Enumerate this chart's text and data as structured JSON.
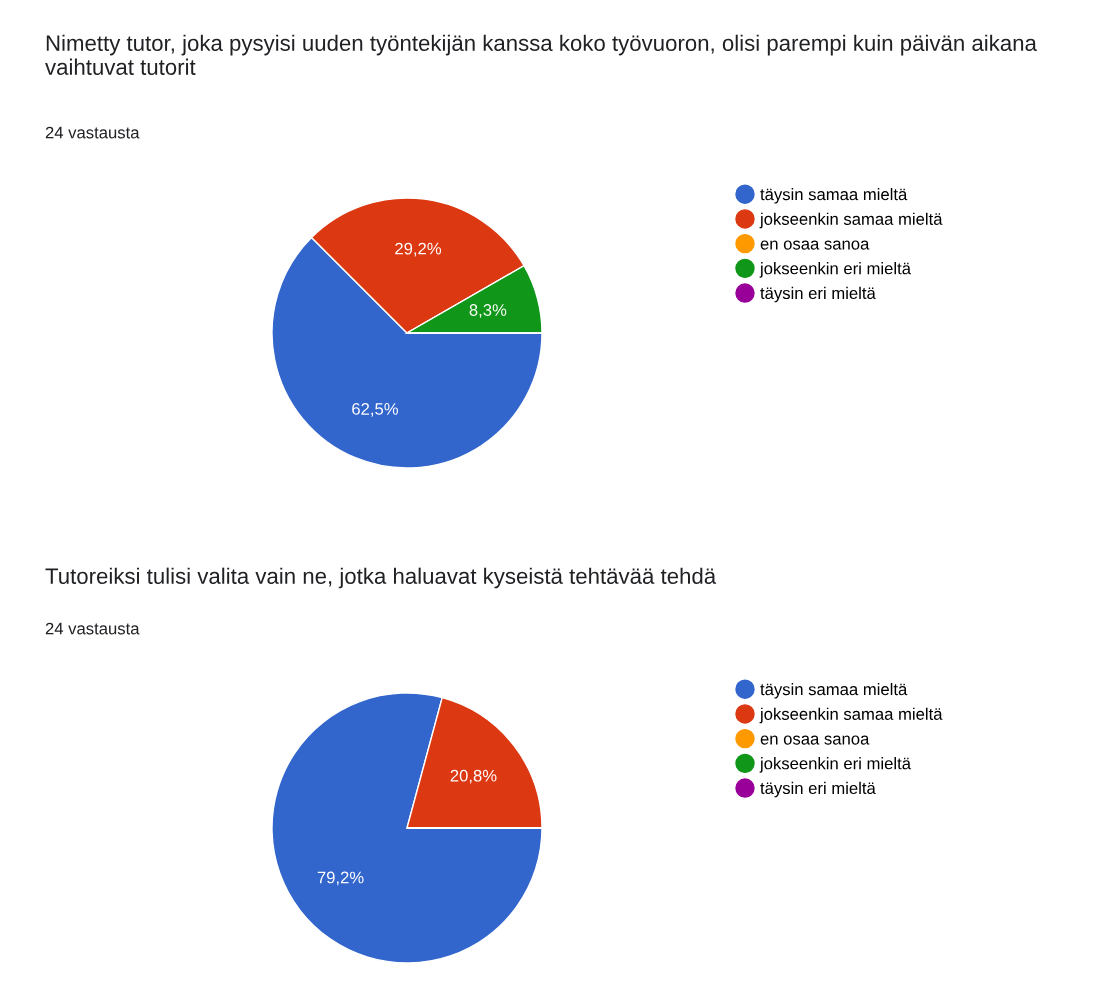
{
  "chart_data": [
    {
      "type": "pie",
      "title": "Nimetty tutor, joka pysyisi uuden työntekijän kanssa koko työvuoron, olisi parempi kuin päivän aikana vaihtuvat tutorit",
      "subtitle": "24 vastausta",
      "categories": [
        "täysin samaa mieltä",
        "jokseenkin samaa mieltä",
        "en osaa sanoa",
        "jokseenkin eri mieltä",
        "täysin eri mieltä"
      ],
      "values": [
        62.5,
        29.2,
        0,
        8.3,
        0
      ],
      "value_labels": [
        "62,5%",
        "29,2%",
        null,
        "8,3%",
        null
      ],
      "colors": [
        "#3366cc",
        "#dc3912",
        "#ff9900",
        "#109618",
        "#990099"
      ],
      "legend": "right"
    },
    {
      "type": "pie",
      "title": "Tutoreiksi tulisi valita vain ne, jotka haluavat kyseistä tehtävää tehdä",
      "subtitle": "24 vastausta",
      "categories": [
        "täysin samaa mieltä",
        "jokseenkin samaa mieltä",
        "en osaa sanoa",
        "jokseenkin eri mieltä",
        "täysin eri mieltä"
      ],
      "values": [
        79.2,
        20.8,
        0,
        0,
        0
      ],
      "value_labels": [
        "79,2%",
        "20,8%",
        null,
        null,
        null
      ],
      "colors": [
        "#3366cc",
        "#dc3912",
        "#ff9900",
        "#109618",
        "#990099"
      ],
      "legend": "right"
    }
  ]
}
